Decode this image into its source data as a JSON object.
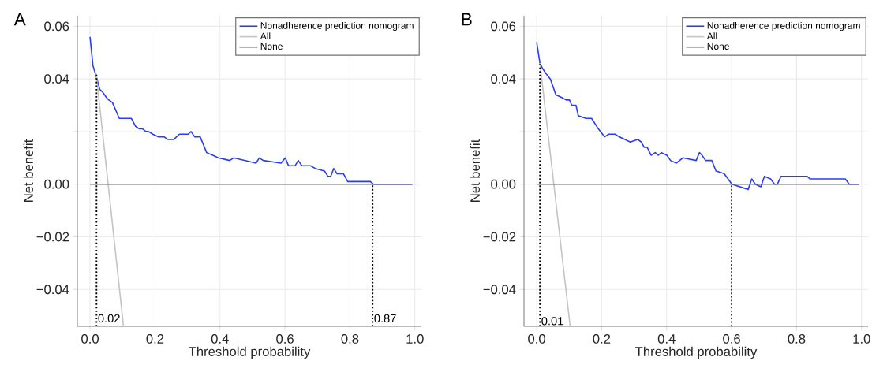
{
  "chart_data": [
    {
      "type": "line",
      "title": "A",
      "xlabel": "Threshold probability",
      "ylabel": "Net benefit",
      "xlim": [
        -0.039,
        1.02
      ],
      "ylim": [
        -0.054,
        0.064
      ],
      "xticks": [
        {
          "value": 0,
          "label": "0.0"
        },
        {
          "value": 0.2,
          "label": "0.2"
        },
        {
          "value": 0.4,
          "label": "0.4"
        },
        {
          "value": 0.6,
          "label": "0.6"
        },
        {
          "value": 0.8,
          "label": "0.8"
        },
        {
          "value": 1,
          "label": "1.0"
        }
      ],
      "yticks": [
        {
          "value": 0.06,
          "label": "0.06"
        },
        {
          "value": 0.04,
          "label": "0.04"
        },
        {
          "value": 0.02,
          "label": null
        },
        {
          "value": 0,
          "label": "0.00"
        },
        {
          "value": -0.02,
          "label": "−0.02"
        },
        {
          "value": -0.04,
          "label": "−0.04"
        }
      ],
      "grid": true,
      "legend": "top right",
      "series": [
        {
          "name": "Nonadherence prediction nomogram",
          "color": "#2b3cf5",
          "x": [
            0,
            0.009,
            0.019,
            0.03,
            0.039,
            0.05,
            0.058,
            0.069,
            0.09,
            0.107,
            0.127,
            0.14,
            0.152,
            0.162,
            0.172,
            0.18,
            0.193,
            0.21,
            0.228,
            0.239,
            0.258,
            0.275,
            0.292,
            0.302,
            0.311,
            0.322,
            0.339,
            0.359,
            0.378,
            0.395,
            0.43,
            0.442,
            0.511,
            0.521,
            0.533,
            0.588,
            0.601,
            0.611,
            0.631,
            0.641,
            0.652,
            0.679,
            0.693,
            0.722,
            0.732,
            0.741,
            0.75,
            0.76,
            0.78,
            0.793,
            0.863,
            0.872,
            0.992
          ],
          "values": [
            0.056,
            0.045,
            0.041,
            0.036,
            0.035,
            0.033,
            0.032,
            0.031,
            0.025,
            0.025,
            0.025,
            0.022,
            0.021,
            0.021,
            0.02,
            0.02,
            0.019,
            0.018,
            0.018,
            0.017,
            0.017,
            0.019,
            0.019,
            0.019,
            0.02,
            0.018,
            0.018,
            0.012,
            0.011,
            0.01,
            0.009,
            0.01,
            0.008,
            0.01,
            0.009,
            0.008,
            0.01,
            0.007,
            0.007,
            0.009,
            0.007,
            0.007,
            0.006,
            0.005,
            0.003,
            0.003,
            0.006,
            0.004,
            0.004,
            0.001,
            0.001,
            0,
            0
          ]
        },
        {
          "name": "All",
          "color": "#c4c4c4",
          "x": [
            0.019,
            0.103
          ],
          "values": [
            0.042,
            -0.054
          ]
        },
        {
          "name": "None",
          "color": "#707070",
          "x": [
            0,
            0.992
          ],
          "values": [
            0,
            0
          ]
        },
        {
          "color": "#000000",
          "line_style": "dotted",
          "x": [
            0.02,
            0.02
          ],
          "values": [
            -0.054,
            0.042
          ]
        },
        {
          "color": "#000000",
          "line_style": "dotted",
          "x": [
            0.87,
            0.87
          ],
          "values": [
            -0.054,
            0
          ]
        }
      ],
      "annotations": [
        {
          "text": "0.02",
          "x": 0.02,
          "y": -0.051
        },
        {
          "text": "0.87",
          "x": 0.87,
          "y": -0.051
        }
      ]
    },
    {
      "type": "line",
      "title": "B",
      "xlabel": "Threshold probability",
      "ylabel": "Net benefit",
      "xlim": [
        -0.039,
        1.02
      ],
      "ylim": [
        -0.054,
        0.064
      ],
      "xticks": [
        {
          "value": 0,
          "label": "0.0"
        },
        {
          "value": 0.2,
          "label": "0.2"
        },
        {
          "value": 0.4,
          "label": "0.4"
        },
        {
          "value": 0.6,
          "label": "0.6"
        },
        {
          "value": 0.8,
          "label": "0.8"
        },
        {
          "value": 1,
          "label": "1.0"
        }
      ],
      "yticks": [
        {
          "value": 0.06,
          "label": "0.06"
        },
        {
          "value": 0.04,
          "label": "0.04"
        },
        {
          "value": 0.02,
          "label": null
        },
        {
          "value": 0,
          "label": "0.00"
        },
        {
          "value": -0.02,
          "label": "−0.02"
        },
        {
          "value": -0.04,
          "label": "−0.04"
        }
      ],
      "grid": true,
      "legend": "top right",
      "series": [
        {
          "name": "Nonadherence prediction nomogram",
          "color": "#2b3cf5",
          "x": [
            0,
            0.01,
            0.018,
            0.029,
            0.042,
            0.059,
            0.076,
            0.091,
            0.101,
            0.108,
            0.121,
            0.128,
            0.152,
            0.169,
            0.19,
            0.209,
            0.222,
            0.241,
            0.254,
            0.288,
            0.311,
            0.322,
            0.331,
            0.34,
            0.352,
            0.365,
            0.374,
            0.384,
            0.401,
            0.412,
            0.43,
            0.45,
            0.491,
            0.501,
            0.509,
            0.52,
            0.539,
            0.552,
            0.577,
            0.601,
            0.651,
            0.662,
            0.673,
            0.69,
            0.701,
            0.72,
            0.732,
            0.741,
            0.752,
            0.832,
            0.841,
            0.95,
            0.962,
            0.992
          ],
          "values": [
            0.054,
            0.046,
            0.044,
            0.042,
            0.04,
            0.034,
            0.033,
            0.032,
            0.032,
            0.03,
            0.03,
            0.026,
            0.025,
            0.025,
            0.021,
            0.018,
            0.019,
            0.019,
            0.018,
            0.016,
            0.017,
            0.016,
            0.014,
            0.014,
            0.011,
            0.012,
            0.011,
            0.012,
            0.011,
            0.009,
            0.008,
            0.01,
            0.009,
            0.012,
            0.011,
            0.009,
            0.009,
            0.005,
            0.004,
            0,
            -0.002,
            0.002,
            0,
            -0.001,
            0.003,
            0.002,
            0,
            0,
            0.003,
            0.003,
            0.002,
            0.002,
            0,
            0
          ]
        },
        {
          "name": "All",
          "color": "#c4c4c4",
          "x": [
            0.01,
            0.103
          ],
          "values": [
            0.046,
            -0.054
          ]
        },
        {
          "name": "None",
          "color": "#707070",
          "x": [
            0,
            0.992
          ],
          "values": [
            0,
            0
          ]
        },
        {
          "color": "#000000",
          "line_style": "dotted",
          "x": [
            0.01,
            0.01
          ],
          "values": [
            -0.054,
            0.046
          ]
        },
        {
          "color": "#000000",
          "line_style": "dotted",
          "x": [
            0.6,
            0.6
          ],
          "values": [
            -0.054,
            0
          ]
        }
      ],
      "annotations": [
        {
          "text": "0.01",
          "x": 0.01,
          "y": -0.052
        }
      ]
    }
  ]
}
